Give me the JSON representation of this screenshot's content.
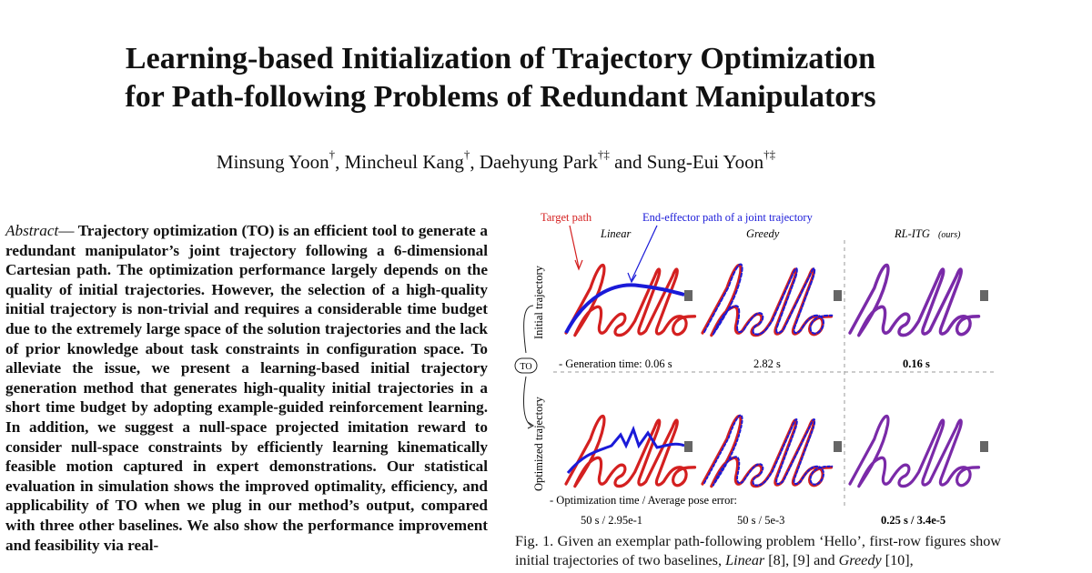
{
  "paper": {
    "title_line1": "Learning-based Initialization of Trajectory Optimization",
    "title_line2": "for Path-following Problems of Redundant Manipulators",
    "authors": [
      {
        "name": "Minsung Yoon",
        "mark": "†",
        "sep": ", "
      },
      {
        "name": "Mincheul Kang",
        "mark": "†",
        "sep": ", "
      },
      {
        "name": "Daehyung Park",
        "mark": "†‡",
        "sep": " and "
      },
      {
        "name": "Sung-Eui Yoon",
        "mark": "†‡",
        "sep": ""
      }
    ],
    "abstract_lead": "Abstract",
    "abstract_dash": "—",
    "abstract_body": "Trajectory optimization (TO) is an efficient tool to generate a redundant manipulator’s joint trajectory following a 6-dimensional Cartesian path. The optimization performance largely depends on the quality of initial trajectories. However, the selection of a high-quality initial trajectory is non-trivial and requires a considerable time budget due to the extremely large space of the solution trajectories and the lack of prior knowledge about task constraints in configuration space. To alleviate the issue, we present a learning-based initial trajectory generation method that generates high-quality initial trajectories in a short time budget by adopting example-guided reinforcement learning. In addition, we suggest a null-space projected imitation reward to consider null-space constraints by efficiently learning kinematically feasible motion captured in expert demonstrations. Our statistical evaluation in simulation shows the improved optimality, efficiency, and applicability of TO when we plug in our method’s output, compared with three other baselines. We also show the performance improvement and feasibility via real-"
  },
  "figure": {
    "legend_target": "Target path",
    "legend_ee": "End-effector path of a joint trajectory",
    "columns": [
      "Linear",
      "Greedy",
      "RL-ITG"
    ],
    "ours_tag": "(ours)",
    "row_initial": "Initial trajectory",
    "row_optimized": "Optimized trajectory",
    "to_label": "TO",
    "gen_label": "- Generation time: 0.06 s",
    "gen_times": [
      "2.82 s",
      "0.16 s"
    ],
    "opt_label": "- Optimization time / Average pose error:",
    "opt_values": [
      "50 s / 2.95e-1",
      "50 s / 5e-3",
      "0.25 s / 3.4e-5"
    ],
    "colors": {
      "target": "#d42020",
      "ee": "#1a1ad8",
      "blend": "#7a2aa8"
    }
  },
  "caption": {
    "prefix": "Fig. 1.  Given an exemplar path-following problem ‘Hello’, first-row figures show initial trajectories of two baselines, ",
    "m1": "Linear",
    "mid1": " [8], [9] and ",
    "m2": "Greedy",
    "mid2": " [10],"
  }
}
